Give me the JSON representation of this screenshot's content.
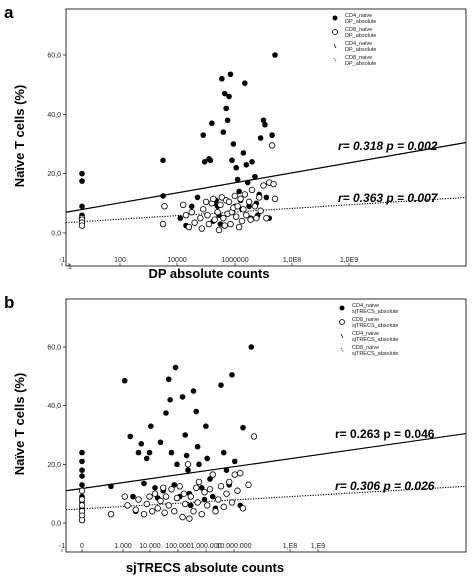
{
  "chart_data": [
    {
      "type": "scatter",
      "panel_label": "a",
      "ylabel": "Naïve T cells (%)",
      "xlabel": "DP absolute counts",
      "x_scale": "log",
      "x_tick_labels": [
        "-1",
        ".1",
        "100",
        "10000",
        "1000000",
        "1,0E8",
        "1,0E9"
      ],
      "y_tick_labels": [
        "0,0",
        "20,0",
        "40,0",
        "60,0"
      ],
      "ylim": [
        -3,
        67
      ],
      "legend": [
        {
          "line1": "CD4_naive",
          "line2": "DP_absolute",
          "marker": "filled-circle"
        },
        {
          "line1": "CD8_naive",
          "line2": "DP_absolute",
          "marker": "open-circle"
        },
        {
          "line1": "CD4_naive",
          "line2": "DP_absolute",
          "marker": "solid-line"
        },
        {
          "line1": "CD8_naive",
          "line2": "DP_absolute",
          "marker": "dotted-line"
        }
      ],
      "annotations": [
        {
          "text": "r= 0.318 p = 0.002",
          "italic": true
        },
        {
          "text": "r= 0.363 p = 0.007",
          "italic": true
        }
      ],
      "fit_lines": [
        {
          "series": "CD4",
          "y_start": 7,
          "y_end": 30.5,
          "style": "solid"
        },
        {
          "series": "CD8",
          "y_start": 3.5,
          "y_end": 12,
          "style": "dotted"
        }
      ],
      "series": [
        {
          "name": "CD4_naive",
          "marker": "filled",
          "points": [
            [
              0,
              20
            ],
            [
              0,
              17.5
            ],
            [
              0,
              9
            ],
            [
              0,
              6
            ],
            [
              3.5,
              24.5
            ],
            [
              3.5,
              12.5
            ],
            [
              4.1,
              5
            ],
            [
              4.3,
              2.5
            ],
            [
              4.5,
              9
            ],
            [
              4.7,
              12
            ],
            [
              4.9,
              33
            ],
            [
              4.95,
              24
            ],
            [
              5.1,
              25
            ],
            [
              5.15,
              24.5
            ],
            [
              5.2,
              37
            ],
            [
              5.3,
              10
            ],
            [
              5.35,
              11
            ],
            [
              5.4,
              9
            ],
            [
              5.45,
              6
            ],
            [
              5.5,
              3
            ],
            [
              5.55,
              52
            ],
            [
              5.6,
              34
            ],
            [
              5.65,
              47
            ],
            [
              5.7,
              42
            ],
            [
              5.75,
              38
            ],
            [
              5.8,
              46
            ],
            [
              5.85,
              53.5
            ],
            [
              5.9,
              24.5
            ],
            [
              5.95,
              30
            ],
            [
              6.0,
              9
            ],
            [
              6.05,
              22
            ],
            [
              6.1,
              18
            ],
            [
              6.15,
              14
            ],
            [
              6.2,
              11
            ],
            [
              6.25,
              8
            ],
            [
              6.3,
              27
            ],
            [
              6.35,
              50.5
            ],
            [
              6.4,
              23
            ],
            [
              6.45,
              17
            ],
            [
              6.5,
              9
            ],
            [
              6.55,
              5
            ],
            [
              6.6,
              24
            ],
            [
              6.7,
              19
            ],
            [
              6.75,
              10
            ],
            [
              6.8,
              6
            ],
            [
              6.9,
              32
            ],
            [
              7.0,
              38
            ],
            [
              7.05,
              36.5
            ],
            [
              7.1,
              12
            ],
            [
              7.2,
              5
            ],
            [
              7.3,
              33
            ],
            [
              7.4,
              60
            ],
            [
              6.85,
              13
            ],
            [
              5.25,
              4
            ]
          ]
        },
        {
          "name": "CD8_naive",
          "marker": "open",
          "points": [
            [
              0,
              5
            ],
            [
              0,
              4.5
            ],
            [
              0,
              3.5
            ],
            [
              0,
              2.5
            ],
            [
              3.5,
              3
            ],
            [
              3.55,
              9
            ],
            [
              4.2,
              9.5
            ],
            [
              4.3,
              6
            ],
            [
              4.4,
              2
            ],
            [
              4.5,
              7
            ],
            [
              4.6,
              3.5
            ],
            [
              4.8,
              5
            ],
            [
              4.85,
              1.5
            ],
            [
              4.9,
              8
            ],
            [
              5.0,
              10.5
            ],
            [
              5.05,
              6
            ],
            [
              5.1,
              3
            ],
            [
              5.2,
              10
            ],
            [
              5.25,
              11.5
            ],
            [
              5.3,
              4.5
            ],
            [
              5.4,
              7
            ],
            [
              5.45,
              1
            ],
            [
              5.5,
              9.5
            ],
            [
              5.55,
              12
            ],
            [
              5.6,
              5
            ],
            [
              5.65,
              2.5
            ],
            [
              5.7,
              11
            ],
            [
              5.75,
              6.5
            ],
            [
              5.8,
              10.5
            ],
            [
              5.85,
              3
            ],
            [
              5.9,
              7
            ],
            [
              5.95,
              8.5
            ],
            [
              6.0,
              12.5
            ],
            [
              6.05,
              5.5
            ],
            [
              6.1,
              9
            ],
            [
              6.2,
              11.5
            ],
            [
              6.25,
              4
            ],
            [
              6.3,
              8
            ],
            [
              6.35,
              13
            ],
            [
              6.4,
              6
            ],
            [
              6.5,
              10.5
            ],
            [
              6.55,
              4.5
            ],
            [
              6.6,
              14.5
            ],
            [
              6.7,
              9
            ],
            [
              6.75,
              5
            ],
            [
              6.85,
              12
            ],
            [
              6.9,
              7.5
            ],
            [
              7.0,
              16
            ],
            [
              7.1,
              5
            ],
            [
              7.2,
              17
            ],
            [
              7.3,
              29.5
            ],
            [
              7.35,
              16.5
            ],
            [
              7.4,
              11.5
            ],
            [
              6.15,
              2
            ]
          ]
        }
      ]
    },
    {
      "type": "scatter",
      "panel_label": "b",
      "ylabel": "Naïve T cells (%)",
      "xlabel": "sjTRECS absolute counts",
      "x_scale": "log",
      "x_tick_labels": [
        "-1",
        "0",
        "1.000",
        "10.000",
        "100.000",
        "1.000.000",
        "10.000.000",
        "1,E8",
        "1,E9"
      ],
      "y_tick_labels": [
        "0,0",
        "20,0",
        "40,0",
        "60,0"
      ],
      "ylim": [
        -3,
        67
      ],
      "legend": [
        {
          "line1": "CD4_naive",
          "line2": "sjTRECS_absolute",
          "marker": "filled-circle"
        },
        {
          "line1": "CD8_naive",
          "line2": "sjTRECS_absolute",
          "marker": "open-circle"
        },
        {
          "line1": "CD4_naive",
          "line2": "sjTRECS_absolute",
          "marker": "solid-line"
        },
        {
          "line1": "CD8_naive",
          "line2": "sjTRECS_absolute",
          "marker": "dotted-line"
        }
      ],
      "annotations": [
        {
          "text": "r= 0.263 p = 0.046",
          "italic": false
        },
        {
          "text": "r= 0.306 p = 0.026",
          "italic": true
        }
      ],
      "fit_lines": [
        {
          "series": "CD4",
          "y_start": 11,
          "y_end": 30.5,
          "style": "solid"
        },
        {
          "series": "CD8",
          "y_start": 4.5,
          "y_end": 12.5,
          "style": "dotted"
        }
      ],
      "series": [
        {
          "name": "CD4_naive",
          "marker": "filled",
          "points": [
            [
              0,
              24
            ],
            [
              0,
              21
            ],
            [
              0,
              18
            ],
            [
              0,
              16
            ],
            [
              0,
              13
            ],
            [
              0,
              11
            ],
            [
              0,
              9
            ],
            [
              0,
              7
            ],
            [
              0,
              5
            ],
            [
              2.4,
              12.5
            ],
            [
              2.9,
              48.5
            ],
            [
              3.1,
              29.5
            ],
            [
              3.2,
              9
            ],
            [
              3.3,
              4
            ],
            [
              3.4,
              24
            ],
            [
              3.5,
              27
            ],
            [
              3.6,
              13.5
            ],
            [
              3.7,
              22
            ],
            [
              3.8,
              24
            ],
            [
              3.85,
              33
            ],
            [
              4.0,
              12
            ],
            [
              4.1,
              8.5
            ],
            [
              4.2,
              27.5
            ],
            [
              4.3,
              11
            ],
            [
              4.4,
              37.5
            ],
            [
              4.5,
              49
            ],
            [
              4.55,
              42
            ],
            [
              4.6,
              24
            ],
            [
              4.7,
              13
            ],
            [
              4.75,
              53
            ],
            [
              4.8,
              20
            ],
            [
              4.9,
              9
            ],
            [
              5.0,
              43
            ],
            [
              5.1,
              30
            ],
            [
              5.15,
              23
            ],
            [
              5.2,
              18
            ],
            [
              5.25,
              10
            ],
            [
              5.3,
              6
            ],
            [
              5.4,
              45
            ],
            [
              5.5,
              38
            ],
            [
              5.55,
              26
            ],
            [
              5.6,
              20
            ],
            [
              5.7,
              12
            ],
            [
              5.8,
              8
            ],
            [
              5.85,
              33
            ],
            [
              5.9,
              22
            ],
            [
              6.0,
              15
            ],
            [
              6.1,
              9
            ],
            [
              6.2,
              5
            ],
            [
              6.4,
              47
            ],
            [
              6.5,
              24
            ],
            [
              6.6,
              18
            ],
            [
              6.7,
              13
            ],
            [
              6.8,
              50.5
            ],
            [
              6.9,
              21
            ],
            [
              7.1,
              6
            ],
            [
              7.2,
              32.5
            ],
            [
              7.5,
              60
            ]
          ]
        },
        {
          "name": "CD8_naive",
          "marker": "open",
          "points": [
            [
              0,
              11
            ],
            [
              0,
              8
            ],
            [
              0,
              6
            ],
            [
              0,
              4
            ],
            [
              0,
              2.5
            ],
            [
              0,
              1
            ],
            [
              2.4,
              3
            ],
            [
              2.9,
              9
            ],
            [
              3.0,
              6
            ],
            [
              3.3,
              4.5
            ],
            [
              3.4,
              8
            ],
            [
              3.6,
              3
            ],
            [
              3.7,
              6.5
            ],
            [
              3.8,
              9
            ],
            [
              3.9,
              4
            ],
            [
              4.0,
              10
            ],
            [
              4.1,
              5
            ],
            [
              4.2,
              7.5
            ],
            [
              4.3,
              12
            ],
            [
              4.35,
              3.5
            ],
            [
              4.4,
              9
            ],
            [
              4.5,
              6
            ],
            [
              4.6,
              11.5
            ],
            [
              4.7,
              4
            ],
            [
              4.8,
              8.5
            ],
            [
              4.9,
              12.5
            ],
            [
              5.0,
              2
            ],
            [
              5.05,
              10
            ],
            [
              5.1,
              6.5
            ],
            [
              5.2,
              20
            ],
            [
              5.3,
              9
            ],
            [
              5.4,
              4
            ],
            [
              5.5,
              12
            ],
            [
              5.55,
              7
            ],
            [
              5.6,
              14
            ],
            [
              5.7,
              3
            ],
            [
              5.8,
              10.5
            ],
            [
              5.9,
              6
            ],
            [
              6.0,
              11.5
            ],
            [
              6.1,
              16.5
            ],
            [
              6.2,
              4
            ],
            [
              6.3,
              8
            ],
            [
              6.4,
              12.5
            ],
            [
              6.5,
              5.5
            ],
            [
              6.6,
              10
            ],
            [
              6.7,
              14
            ],
            [
              6.8,
              7
            ],
            [
              6.9,
              16.5
            ],
            [
              7.0,
              11
            ],
            [
              7.1,
              17
            ],
            [
              7.2,
              5
            ],
            [
              7.4,
              13
            ],
            [
              7.6,
              29.5
            ],
            [
              5.25,
              1.5
            ]
          ]
        }
      ]
    }
  ]
}
